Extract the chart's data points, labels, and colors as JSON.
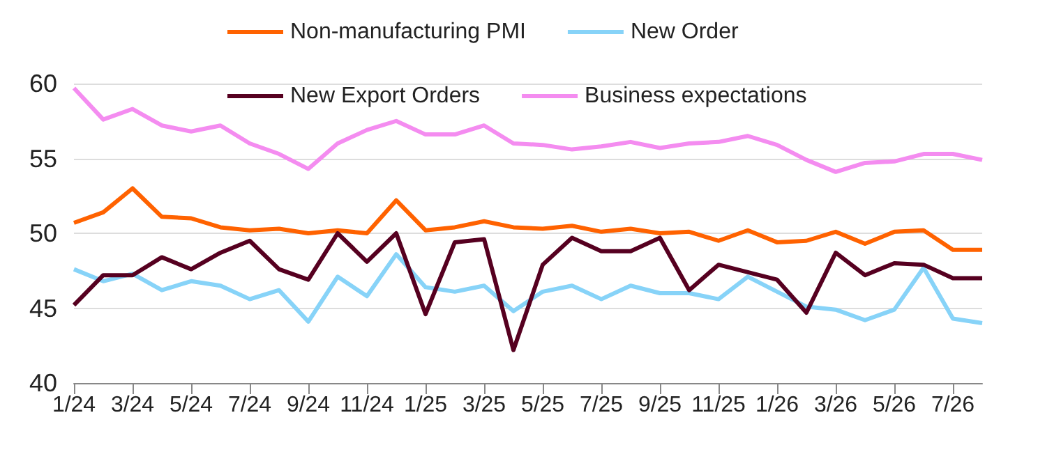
{
  "chart_data": {
    "type": "line",
    "categories": [
      "1/24",
      null,
      "3/24",
      null,
      "5/24",
      null,
      "7/24",
      null,
      "9/24",
      null,
      "11/24",
      null,
      "1/25",
      null,
      "3/25",
      null,
      "5/25",
      null,
      "7/25",
      null,
      "9/25",
      null,
      "11/25",
      null,
      "1/26",
      null,
      "3/26",
      null,
      "5/26",
      null,
      "7/26",
      null
    ],
    "series": [
      {
        "name": "Non-manufacturing PMI",
        "color": "#ff6200",
        "values": [
          50.7,
          51.4,
          53.0,
          51.1,
          51.0,
          50.4,
          50.2,
          50.3,
          50.0,
          50.2,
          50.0,
          52.2,
          50.2,
          50.4,
          50.8,
          50.4,
          50.3,
          50.5,
          50.1,
          50.3,
          50.0,
          50.1,
          49.5,
          50.2,
          49.4,
          49.5,
          50.1,
          49.3,
          50.1,
          50.2,
          48.9,
          48.9
        ]
      },
      {
        "name": "New Order",
        "color": "#87d3f8",
        "values": [
          47.6,
          46.8,
          47.3,
          46.2,
          46.8,
          46.5,
          45.6,
          46.2,
          44.1,
          47.1,
          45.8,
          48.6,
          46.4,
          46.1,
          46.5,
          44.8,
          46.1,
          46.5,
          45.6,
          46.5,
          46.0,
          46.0,
          45.6,
          47.1,
          46.1,
          45.1,
          44.9,
          44.2,
          44.9,
          47.7,
          44.3,
          44.0
        ]
      },
      {
        "name": "New Export Orders",
        "color": "#560020",
        "values": [
          45.2,
          47.2,
          47.2,
          48.4,
          47.6,
          48.7,
          49.5,
          47.6,
          46.9,
          50.0,
          48.1,
          50.0,
          44.6,
          49.4,
          49.6,
          42.2,
          47.9,
          49.7,
          48.8,
          48.8,
          49.7,
          46.2,
          47.9,
          47.4,
          46.9,
          44.7,
          48.7,
          47.2,
          48.0,
          47.9,
          47.0,
          47.0
        ]
      },
      {
        "name": "Business expectations",
        "color": "#f48cf0",
        "values": [
          59.7,
          57.6,
          58.3,
          57.2,
          56.8,
          57.2,
          56.0,
          55.3,
          54.3,
          56.0,
          56.9,
          57.5,
          56.6,
          56.6,
          57.2,
          56.0,
          55.9,
          55.6,
          55.8,
          56.1,
          55.7,
          56.0,
          56.1,
          56.5,
          55.9,
          54.9,
          54.1,
          54.7,
          54.8,
          55.3,
          55.3,
          54.9
        ]
      }
    ],
    "ylim": [
      40,
      60
    ],
    "yticks": [
      40,
      45,
      50,
      55,
      60
    ],
    "grid": "y",
    "legend": "top",
    "marker": "none",
    "line_style": "solid"
  }
}
